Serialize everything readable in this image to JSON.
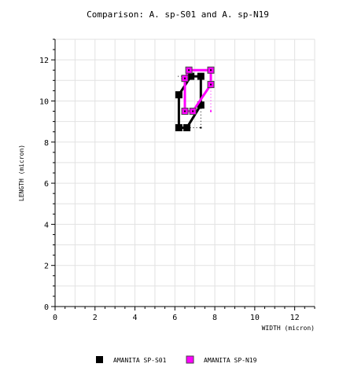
{
  "chart_data": {
    "type": "line",
    "title": "Comparison: A. sp-S01 and A. sp-N19",
    "xlabel": "WIDTH (micron)",
    "ylabel": "LENGTH (micron)",
    "xlim": [
      0,
      13
    ],
    "ylim": [
      0,
      13
    ],
    "x_ticks": [
      "0",
      "2",
      "4",
      "6",
      "8",
      "10",
      "12"
    ],
    "y_ticks": [
      "0",
      "2",
      "4",
      "6",
      "8",
      "10",
      "12"
    ],
    "grid": true,
    "legend_position": "bottom",
    "series": [
      {
        "name": "AMANITA SP-S01",
        "color": "#000000",
        "marker": "square",
        "outline": [
          [
            6.2,
            8.7
          ],
          [
            6.6,
            8.7
          ],
          [
            7.3,
            9.8
          ],
          [
            7.3,
            11.2
          ],
          [
            6.8,
            11.2
          ],
          [
            6.2,
            10.3
          ],
          [
            6.2,
            8.7
          ]
        ],
        "whiskers": [
          [
            [
              6.15,
              11.2
            ],
            [
              6.8,
              11.2
            ]
          ],
          [
            [
              7.3,
              9.8
            ],
            [
              7.3,
              8.7
            ]
          ],
          [
            [
              6.6,
              8.7
            ],
            [
              7.3,
              8.7
            ]
          ]
        ]
      },
      {
        "name": "AMANITA SP-N19",
        "color": "#ff00ff",
        "marker": "square-dot",
        "outline": [
          [
            6.5,
            9.5
          ],
          [
            6.9,
            9.5
          ],
          [
            7.8,
            10.8
          ],
          [
            7.8,
            11.5
          ],
          [
            6.7,
            11.5
          ],
          [
            6.5,
            11.1
          ],
          [
            6.5,
            9.5
          ]
        ],
        "whiskers": [
          [
            [
              7.8,
              10.8
            ],
            [
              7.8,
              9.5
            ]
          ],
          [
            [
              6.3,
              11.1
            ],
            [
              6.5,
              11.1
            ]
          ]
        ]
      }
    ]
  }
}
